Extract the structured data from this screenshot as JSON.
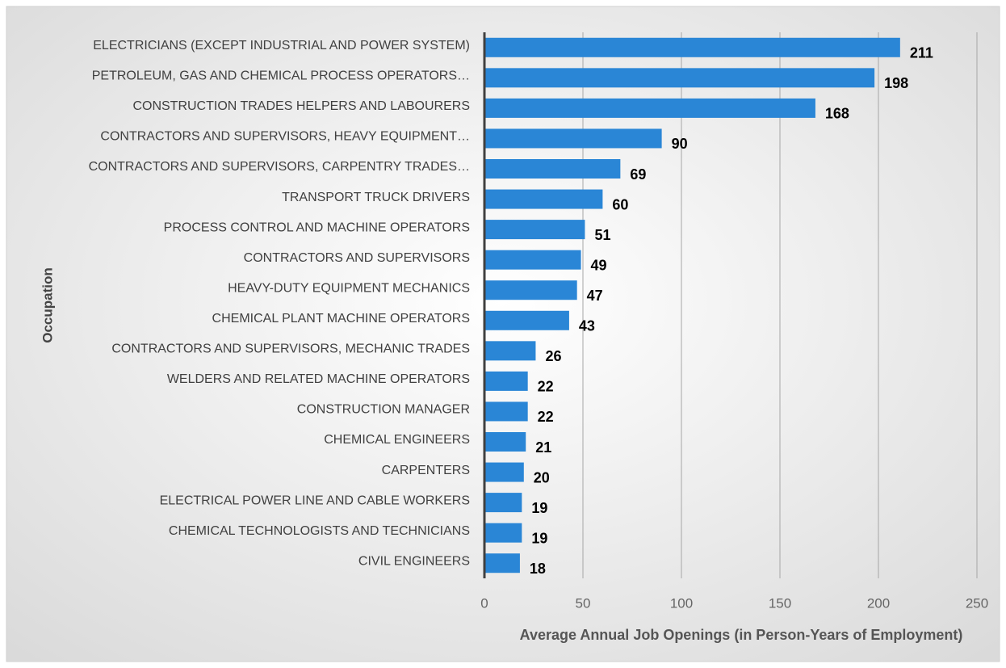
{
  "chart_data": {
    "type": "bar",
    "orientation": "horizontal",
    "x_label": "Average Annual Job Openings (in Person-Years of Employment)",
    "y_label": "Occupation",
    "categories": [
      "ELECTRICIANS (EXCEPT INDUSTRIAL AND POWER SYSTEM)",
      "PETROLEUM, GAS AND CHEMICAL PROCESS OPERATORS…",
      "CONSTRUCTION TRADES HELPERS AND LABOURERS",
      "CONTRACTORS AND SUPERVISORS, HEAVY EQUIPMENT…",
      "CONTRACTORS AND SUPERVISORS, CARPENTRY TRADES…",
      "TRANSPORT TRUCK DRIVERS",
      "PROCESS CONTROL AND MACHINE OPERATORS",
      "CONTRACTORS AND SUPERVISORS",
      "HEAVY-DUTY EQUIPMENT MECHANICS",
      "CHEMICAL PLANT MACHINE OPERATORS",
      "CONTRACTORS AND SUPERVISORS, MECHANIC TRADES",
      "WELDERS AND RELATED MACHINE OPERATORS",
      "CONSTRUCTION MANAGER",
      "CHEMICAL ENGINEERS",
      "CARPENTERS",
      "ELECTRICAL POWER LINE AND CABLE WORKERS",
      "CHEMICAL TECHNOLOGISTS AND TECHNICIANS",
      "CIVIL ENGINEERS"
    ],
    "values": [
      211,
      198,
      168,
      90,
      69,
      60,
      51,
      49,
      47,
      43,
      26,
      22,
      22,
      21,
      20,
      19,
      19,
      18
    ],
    "color": "#2a86d6",
    "xlim": [
      0,
      250
    ],
    "xticks": [
      0,
      50,
      100,
      150,
      200,
      250
    ],
    "grid": true
  }
}
